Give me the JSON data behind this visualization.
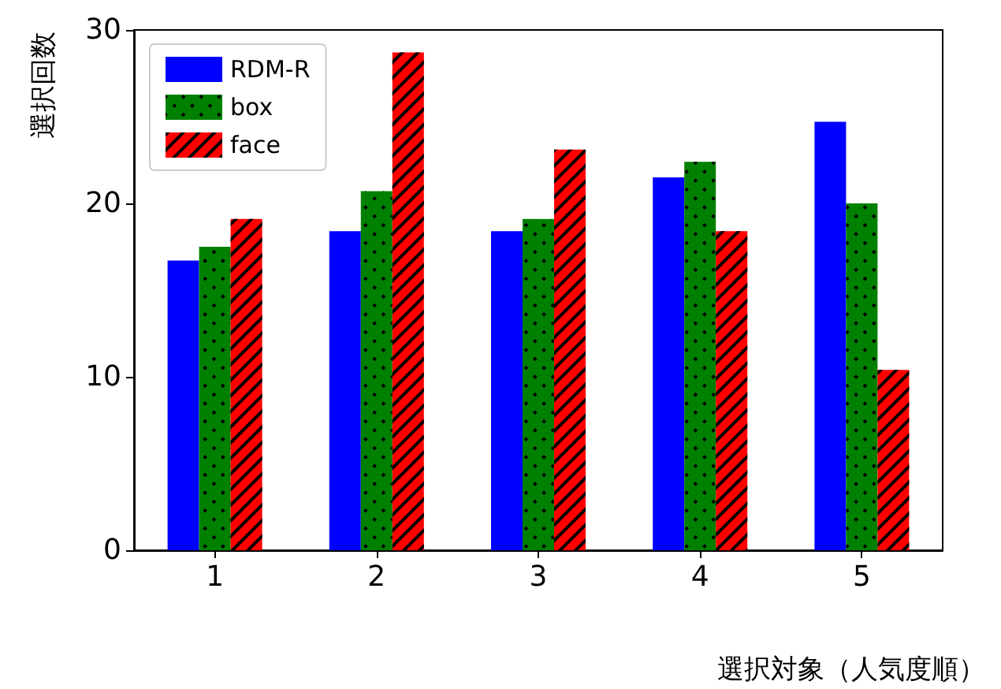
{
  "chart_data": {
    "type": "bar",
    "xlabel": "選択対象（人気度順）",
    "ylabel": "選択回数",
    "categories": [
      "1",
      "2",
      "3",
      "4",
      "5"
    ],
    "series": [
      {
        "name": "RDM-R",
        "color": "#0000ff",
        "values": [
          16.7,
          18.4,
          18.4,
          21.5,
          24.7
        ]
      },
      {
        "name": "box",
        "color": "#008000",
        "values": [
          17.5,
          20.7,
          19.1,
          22.4,
          20.0
        ]
      },
      {
        "name": "face",
        "color": "#ff0000",
        "values": [
          19.1,
          28.7,
          23.1,
          18.4,
          10.4
        ]
      }
    ],
    "ylim": [
      0,
      30
    ],
    "yticks": [
      0,
      10,
      20,
      30
    ],
    "grid": false,
    "legend": "top left"
  }
}
